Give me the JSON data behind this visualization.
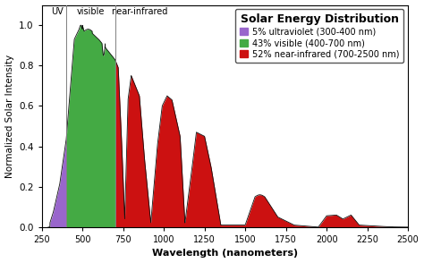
{
  "title": "Solar Energy Distribution",
  "xlabel": "Wavelength (nanometers)",
  "ylabel": "Normalized Solar Intensity",
  "xlim": [
    250,
    2500
  ],
  "ylim": [
    0.0,
    1.05
  ],
  "xticks": [
    250,
    500,
    750,
    1000,
    1250,
    1500,
    1750,
    2000,
    2250,
    2500
  ],
  "yticks": [
    0.0,
    0.2,
    0.4,
    0.6,
    0.8,
    1.0
  ],
  "uv_color": "#9966cc",
  "visible_color": "#44aa44",
  "nir_color": "#cc1111",
  "edge_color": "#111111",
  "bg_color": "#ffffff",
  "uv_label": "5% ultraviolet (300-400 nm)",
  "vis_label": "43% visible (400-700 nm)",
  "nir_label": "52% near-infrared (700-2500 nm)",
  "uv_boundary": 400,
  "vis_boundary": 700,
  "region_label_uv": "UV",
  "region_label_vis": "visible",
  "region_label_nir": "near-infrared",
  "title_fontsize": 9,
  "label_fontsize": 8,
  "tick_fontsize": 7.5
}
